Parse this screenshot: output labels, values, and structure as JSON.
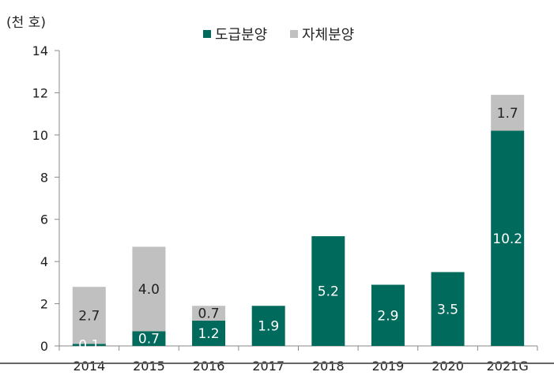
{
  "chart_data": {
    "type": "bar",
    "stacked": true,
    "ylabel": "(천 호)",
    "ylim": [
      0,
      14
    ],
    "yticks": [
      0,
      2,
      4,
      6,
      8,
      10,
      12,
      14
    ],
    "categories": [
      "2014",
      "2015",
      "2016",
      "2017",
      "2018",
      "2019",
      "2020",
      "2021G"
    ],
    "series": [
      {
        "name": "도급분양",
        "color": "#006B5C",
        "values": [
          0.1,
          0.7,
          1.2,
          1.9,
          5.2,
          2.9,
          3.5,
          10.2
        ],
        "labels": [
          "0.1",
          "0.7",
          "1.2",
          "1.9",
          "5.2",
          "2.9",
          "3.5",
          "10.2"
        ]
      },
      {
        "name": "자체분양",
        "color": "#C0C0C0",
        "values": [
          2.7,
          4.0,
          0.7,
          0,
          0,
          0,
          0,
          1.7
        ],
        "labels": [
          "2.7",
          "4.0",
          "0.7",
          "",
          "",
          "",
          "",
          "1.7"
        ]
      }
    ],
    "legend": "top-center",
    "grid": false
  }
}
